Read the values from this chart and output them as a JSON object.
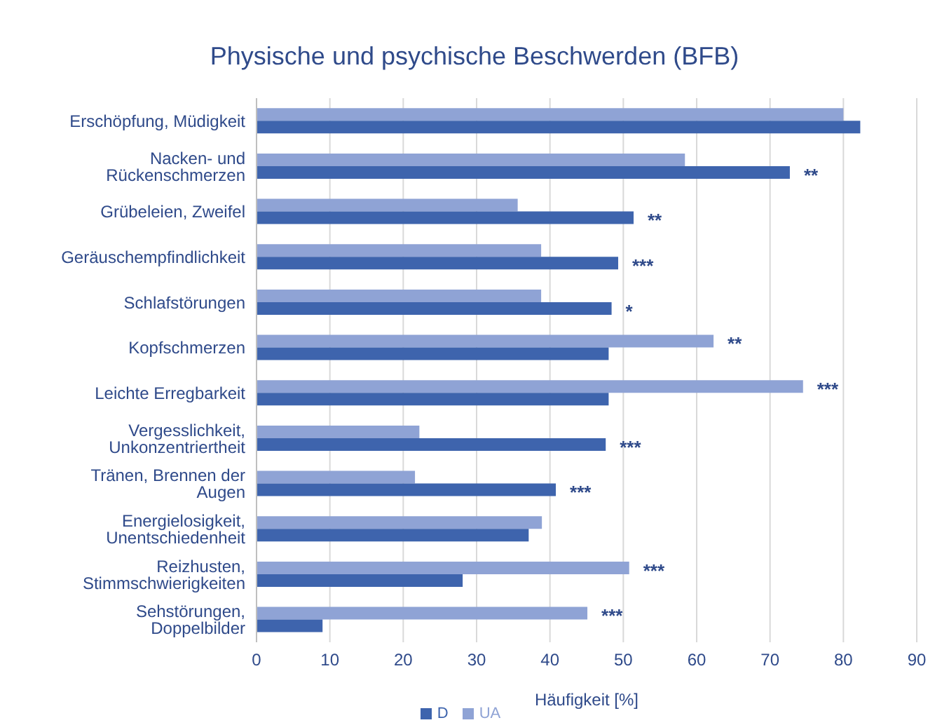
{
  "chart_data": {
    "type": "bar",
    "orientation": "horizontal",
    "title": "Physische und psychische Beschwerden (BFB)",
    "xlabel": "Häufigkeit [%]",
    "categories": [
      "Erschöpfung, Müdigkeit",
      "Nacken- und Rückenschmerzen",
      "Grübeleien, Zweifel",
      "Geräuschempfindlichkeit",
      "Schlafstörungen",
      "Kopfschmerzen",
      "Leichte Erregbarkeit",
      "Vergesslichkeit, Unkonzentriertheit",
      "Tränen, Brennen der Augen",
      "Energielosigkeit, Unentschiedenheit",
      "Reizhusten, Stimmschwierigkeiten",
      "Sehstörungen, Doppelbilder"
    ],
    "series": [
      {
        "name": "UA",
        "color": "#8fa3d5",
        "values": [
          80,
          58.4,
          35.6,
          38.8,
          38.8,
          62.3,
          74.5,
          22.2,
          21.6,
          38.9,
          50.8,
          45.1
        ],
        "value_labels": [
          null,
          null,
          null,
          null,
          null,
          "**",
          "***",
          null,
          null,
          null,
          "***",
          "***"
        ]
      },
      {
        "name": "D",
        "color": "#3e64ad",
        "values": [
          82.3,
          72.7,
          51.4,
          49.3,
          48.4,
          48,
          48,
          47.6,
          40.8,
          37.1,
          28.1,
          9
        ],
        "value_labels": [
          null,
          "**",
          "**",
          "***",
          "*",
          null,
          null,
          "***",
          "***",
          null,
          null,
          null
        ]
      }
    ],
    "xlim": [
      0,
      90
    ],
    "xticks": [
      0,
      10,
      20,
      30,
      40,
      50,
      60,
      70,
      80,
      90
    ],
    "grid": "x",
    "legend": "bottom"
  }
}
